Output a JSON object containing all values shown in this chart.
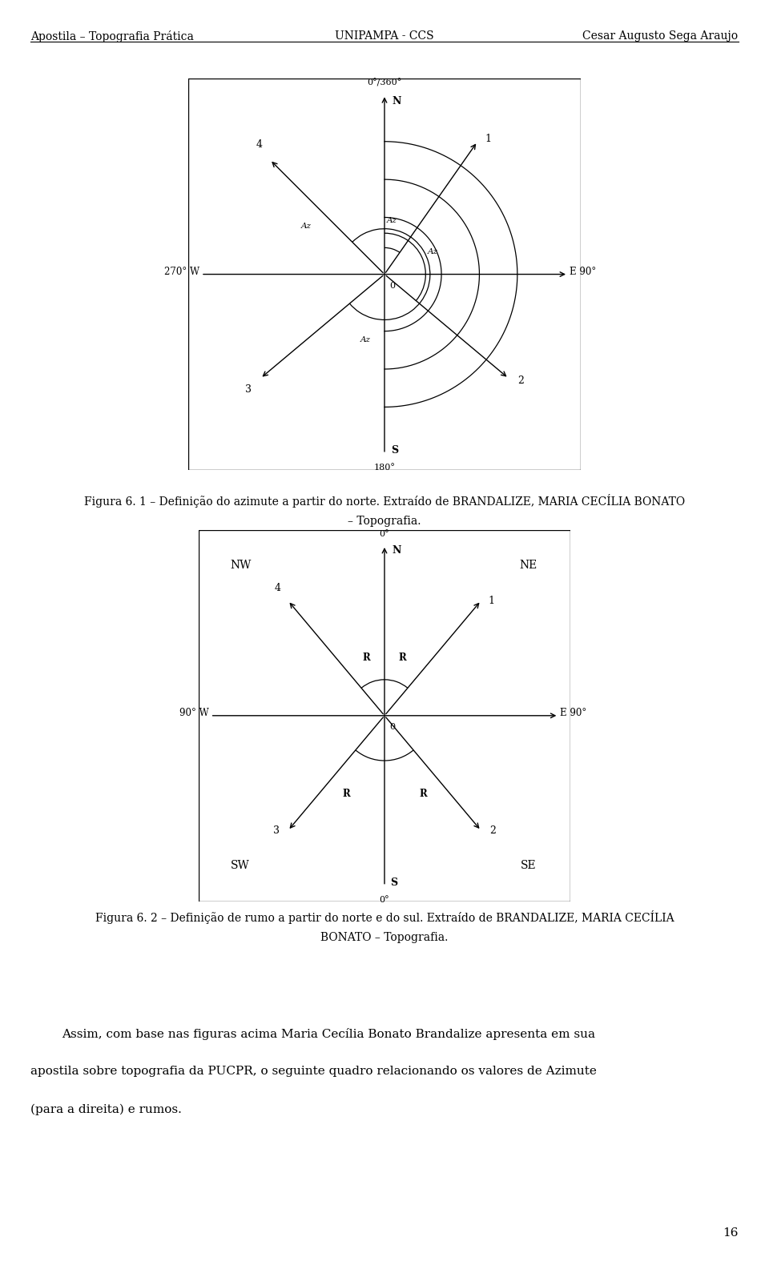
{
  "page_width": 9.6,
  "page_height": 15.75,
  "dpi": 100,
  "bg_color": "#ffffff",
  "header_left": "Apostila – Topografia Prática",
  "header_center": "UNIPAMPA - CCS",
  "header_right": "Cesar Augusto Sega Araujo",
  "header_fontsize": 10,
  "fig1_caption_line1": "Figura 6. 1 – Definição do azimute a partir do norte. Extraído de BRANDALIZE, MARIA CECÍLIA BONATO",
  "fig1_caption_line2": "– Topografia.",
  "fig2_caption_line1": "Figura 6. 2 – Definição de rumo a partir do norte e do sul. Extraído de BRANDALIZE, MARIA CECÍLIA",
  "fig2_caption_line2": "BONATO – Topografia.",
  "body_text_line1": "Assim, com base nas figuras acima Maria Cecília Bonato Brandalize apresenta em sua",
  "body_text_line2": "apostila sobre topografia da PUCPR, o seguinte quadro relacionando os valores de Azimute",
  "body_text_line3": "(para a direita) e rumos.",
  "page_number": "16",
  "caption_fontsize": 10,
  "body_fontsize": 11,
  "fig1_ray1_az": 35,
  "fig1_ray2_az": 130,
  "fig1_ray3_az": 230,
  "fig1_ray4_az": 315,
  "fig2_ray_deg": 40
}
